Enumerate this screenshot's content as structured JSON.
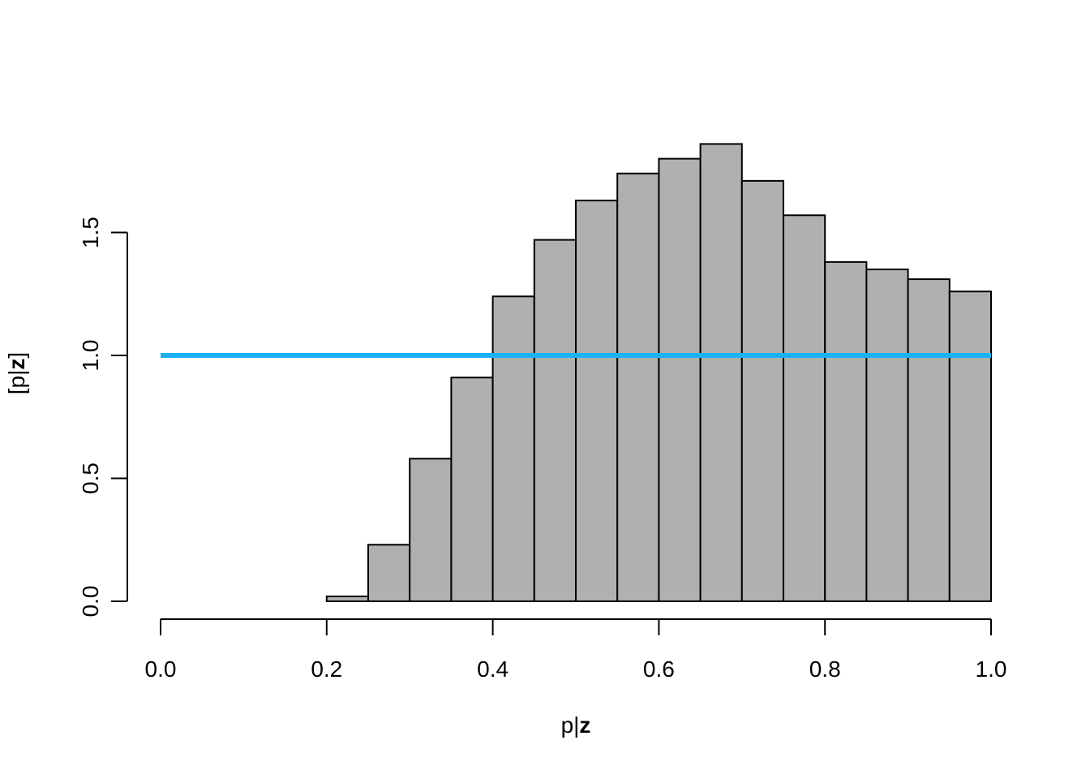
{
  "chart_data": {
    "type": "bar",
    "title": "",
    "xlabel": {
      "prefix": "p|",
      "bold": "z"
    },
    "ylabel": {
      "prefix": "[p|",
      "bold": "z",
      "suffix": "]"
    },
    "xlim": [
      0,
      1
    ],
    "ylim": [
      0,
      1.5
    ],
    "x_ticks": [
      "0.0",
      "0.2",
      "0.4",
      "0.6",
      "0.8",
      "1.0"
    ],
    "y_ticks": [
      "0.0",
      "0.5",
      "1.0",
      "1.5"
    ],
    "grid": false,
    "bin_edges": [
      0.2,
      0.25,
      0.3,
      0.35,
      0.4,
      0.45,
      0.5,
      0.55,
      0.6,
      0.65,
      0.7,
      0.75,
      0.8,
      0.85,
      0.9,
      0.95,
      1.0
    ],
    "values": [
      0.02,
      0.23,
      0.58,
      0.91,
      1.24,
      1.47,
      1.63,
      1.74,
      1.8,
      1.86,
      1.71,
      1.57,
      1.38,
      1.35,
      1.31,
      1.26
    ],
    "bar_color": "#b0b0b0",
    "reference_line": {
      "y": 1.0,
      "x_from": 0,
      "x_to": 1,
      "color": "#1ab2f4"
    }
  }
}
